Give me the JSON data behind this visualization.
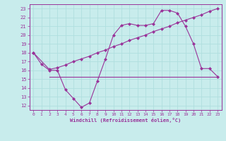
{
  "title": "",
  "xlabel": "Windchill (Refroidissement éolien,°C)",
  "bg_color": "#c8ecec",
  "line_color": "#993399",
  "grid_color": "#b0dede",
  "xlim": [
    -0.5,
    23.5
  ],
  "ylim": [
    11.5,
    23.5
  ],
  "xticks": [
    0,
    1,
    2,
    3,
    4,
    5,
    6,
    7,
    8,
    9,
    10,
    11,
    12,
    13,
    14,
    15,
    16,
    17,
    18,
    19,
    20,
    21,
    22,
    23
  ],
  "yticks": [
    12,
    13,
    14,
    15,
    16,
    17,
    18,
    19,
    20,
    21,
    22,
    23
  ],
  "line1_x": [
    0,
    1,
    2,
    3,
    4,
    5,
    6,
    7,
    8,
    9,
    10,
    11,
    12,
    13,
    14,
    15,
    16,
    17,
    18,
    19,
    20,
    21,
    22,
    23
  ],
  "line1_y": [
    18.0,
    16.7,
    16.0,
    16.0,
    13.8,
    12.8,
    11.8,
    12.3,
    14.8,
    17.3,
    20.0,
    21.1,
    21.3,
    21.1,
    21.1,
    21.3,
    22.8,
    22.8,
    22.5,
    21.0,
    19.0,
    16.2,
    16.2,
    15.3
  ],
  "line2_x": [
    0,
    2,
    3,
    4,
    5,
    6,
    7,
    8,
    9,
    10,
    11,
    12,
    13,
    14,
    15,
    16,
    17,
    18,
    19,
    20,
    21,
    22,
    23
  ],
  "line2_y": [
    18.0,
    16.1,
    16.3,
    16.6,
    17.0,
    17.3,
    17.6,
    18.0,
    18.3,
    18.7,
    19.0,
    19.4,
    19.7,
    20.0,
    20.4,
    20.7,
    21.0,
    21.4,
    21.7,
    22.0,
    22.3,
    22.7,
    23.0
  ],
  "line3_x": [
    2,
    14,
    23
  ],
  "line3_y": [
    15.3,
    15.3,
    15.3
  ]
}
